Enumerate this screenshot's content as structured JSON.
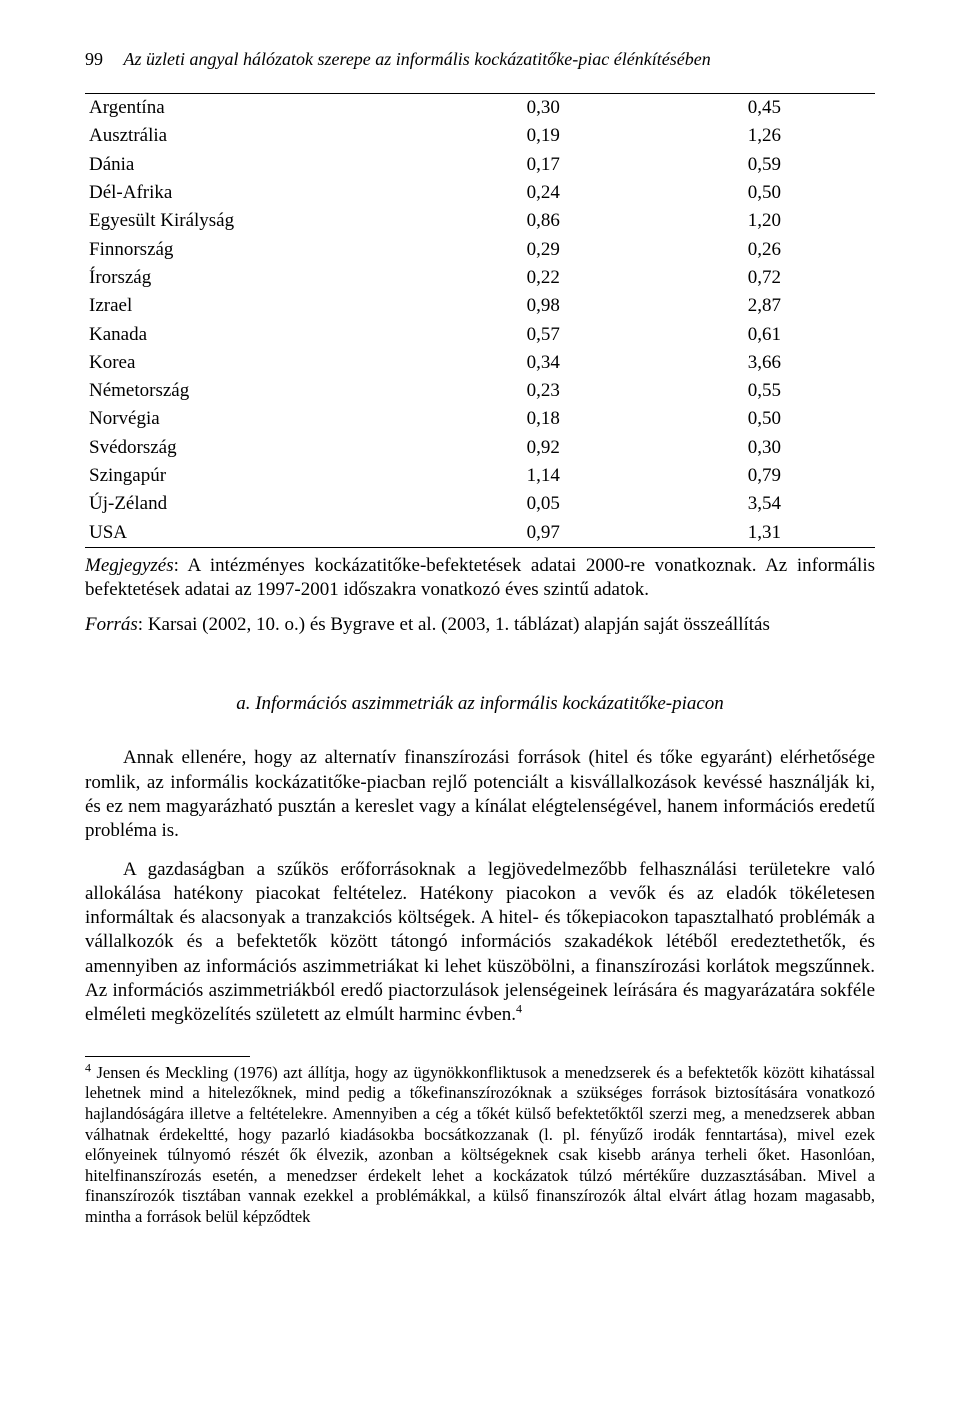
{
  "header": {
    "page_number": "99",
    "running_title": "Az üzleti angyal hálózatok szerepe az informális kockázatitőke-piac élénkítésében"
  },
  "table": {
    "rows": [
      {
        "country": "Argentína",
        "v1": "0,30",
        "v2": "0,45"
      },
      {
        "country": "Ausztrália",
        "v1": "0,19",
        "v2": "1,26"
      },
      {
        "country": "Dánia",
        "v1": "0,17",
        "v2": "0,59"
      },
      {
        "country": "Dél-Afrika",
        "v1": "0,24",
        "v2": "0,50"
      },
      {
        "country": "Egyesült Királyság",
        "v1": "0,86",
        "v2": "1,20"
      },
      {
        "country": "Finnország",
        "v1": "0,29",
        "v2": "0,26"
      },
      {
        "country": "Írország",
        "v1": "0,22",
        "v2": "0,72"
      },
      {
        "country": "Izrael",
        "v1": "0,98",
        "v2": "2,87"
      },
      {
        "country": "Kanada",
        "v1": "0,57",
        "v2": "0,61"
      },
      {
        "country": "Korea",
        "v1": "0,34",
        "v2": "3,66"
      },
      {
        "country": "Németország",
        "v1": "0,23",
        "v2": "0,55"
      },
      {
        "country": "Norvégia",
        "v1": "0,18",
        "v2": "0,50"
      },
      {
        "country": "Svédország",
        "v1": "0,92",
        "v2": "0,30"
      },
      {
        "country": "Szingapúr",
        "v1": "1,14",
        "v2": "0,79"
      },
      {
        "country": "Új-Zéland",
        "v1": "0,05",
        "v2": "3,54"
      },
      {
        "country": "USA",
        "v1": "0,97",
        "v2": "1,31"
      }
    ]
  },
  "note": {
    "lead": "Megjegyzés",
    "text": ": A intézményes kockázatitőke-befektetések adatai 2000-re vonatkoznak. Az informális befektetések adatai az 1997-2001 időszakra vonatkozó éves szintű adatok."
  },
  "source": {
    "lead": "Forrás",
    "text": ": Karsai (2002, 10. o.) és Bygrave et al. (2003, 1. táblázat) alapján saját összeállítás"
  },
  "subsection": {
    "label": "a.   Információs aszimmetriák az informális kockázatitőke-piacon"
  },
  "paragraphs": {
    "p1": "Annak ellenére, hogy az alternatív finanszírozási források (hitel és tőke egyaránt) elérhetősége romlik, az informális kockázatitőke-piacban rejlő potenciált a kisvállalkozások kevéssé használják ki, és ez nem magyarázható pusztán a kereslet vagy a kínálat elégtelenségével, hanem információs eredetű probléma is.",
    "p2_pre": "A gazdaságban a szűkös erőforrásoknak a legjövedelmezőbb felhasználási területekre való allokálása hatékony piacokat feltételez. Hatékony piacokon a vevők és az eladók tökéletesen informáltak és alacsonyak a tranzakciós költségek. A hitel- és tőkepiacokon tapasztalható problémák a vállalkozók és a befektetők között tátongó információs szakadékok létéből eredeztethetők, és amennyiben az információs aszimmetriákat ki lehet küszöbölni, a finanszírozási korlátok megszűnnek. Az információs aszimmetriákból eredő piactorzulások jelenségeinek leírására és magyarázatára sokféle elméleti megközelítés született az elmúlt harminc évben.",
    "p2_fn_mark": "4"
  },
  "footnote": {
    "mark": "4",
    "text": " Jensen és Meckling (1976) azt állítja, hogy az ügynökkonfliktusok a menedzserek és a befektetők között kihatással lehetnek mind a hitelezőknek, mind pedig a tőkefinanszírozóknak a szükséges források biztosítására vonatkozó hajlandóságára illetve a feltételekre. Amennyiben a cég a tőkét külső befektetőktől szerzi meg, a menedzserek abban válhatnak érdekeltté, hogy pazarló kiadásokba bocsátkozzanak (l. pl. fényűző irodák fenntartása), mivel ezek előnyeinek túlnyomó részét ők élvezik, azonban a költségeknek csak kisebb aránya terheli őket. Hasonlóan, hitelfinanszírozás esetén, a menedzser érdekelt lehet a kockázatok túlzó mértékűre duzzasztásában. Mivel a finanszírozók tisztában vannak ezekkel a problémákkal, a külső finanszírozók által elvárt átlag hozam magasabb, mintha a források belül képződtek"
  }
}
